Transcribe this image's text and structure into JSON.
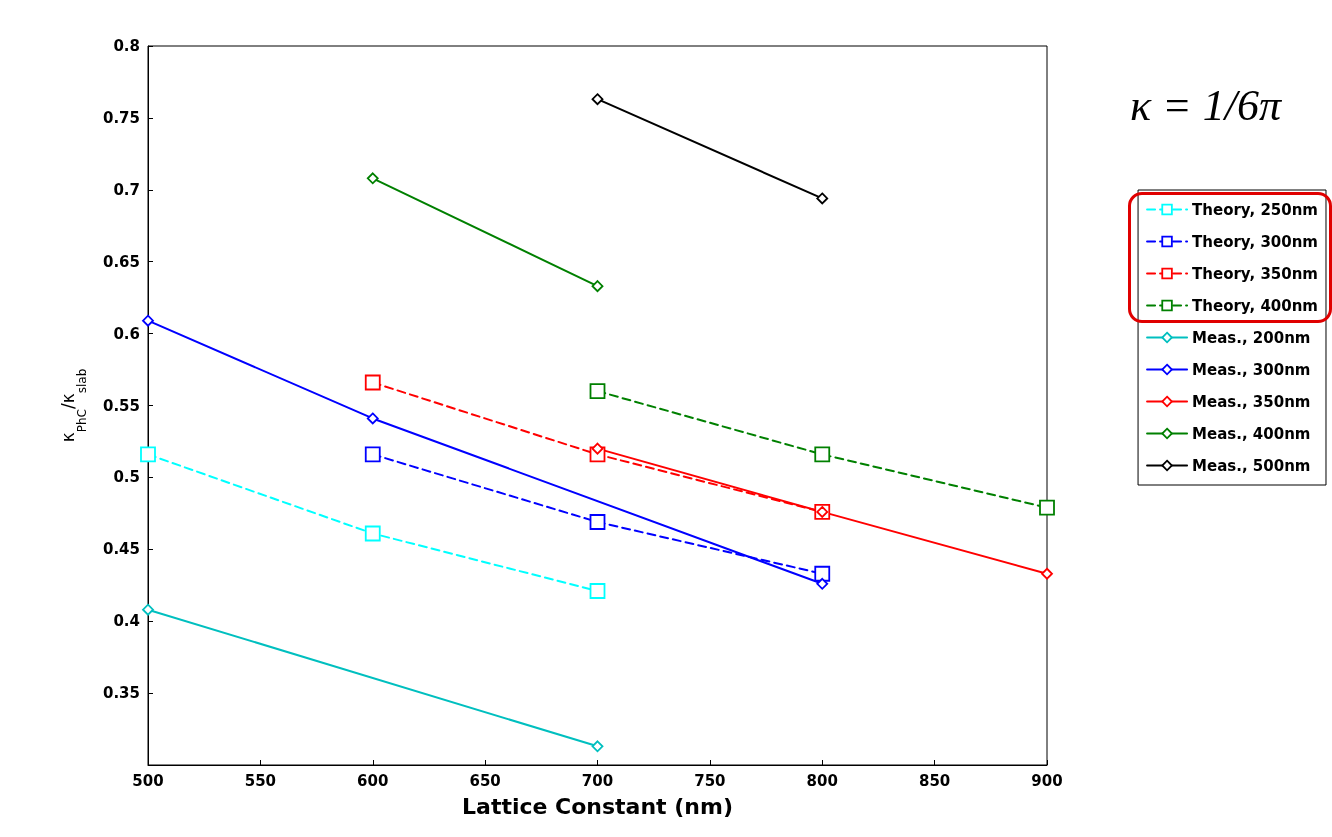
{
  "chart_data": {
    "type": "line",
    "xlabel": "Lattice Constant (nm)",
    "ylabel": "κ$_{PhC}$/κ$_{slab}$",
    "xlim": [
      500,
      900
    ],
    "xticks": [
      500,
      550,
      600,
      650,
      700,
      750,
      800,
      850,
      900
    ],
    "ylim": [
      0.3,
      0.8
    ],
    "yticks": [
      0.35,
      0.4,
      0.45,
      0.5,
      0.55,
      0.6,
      0.65,
      0.7,
      0.75,
      0.8
    ],
    "grid": false,
    "legend": "right",
    "annotations": [
      "κ = 1/6π"
    ],
    "series": [
      {
        "name": "Theory, 250nm",
        "color": "#00ffff",
        "marker": "square",
        "line_style": "dashed",
        "x": [
          500,
          600,
          700
        ],
        "values": [
          0.516,
          0.461,
          0.421
        ]
      },
      {
        "name": "Theory, 300nm",
        "color": "#0000ff",
        "marker": "square",
        "line_style": "dashed",
        "x": [
          600,
          700,
          800
        ],
        "values": [
          0.516,
          0.469,
          0.433
        ]
      },
      {
        "name": "Theory, 350nm",
        "color": "#ff0000",
        "marker": "square",
        "line_style": "dashed",
        "x": [
          600,
          700,
          800
        ],
        "values": [
          0.566,
          0.516,
          0.476
        ]
      },
      {
        "name": "Theory, 400nm",
        "color": "#008000",
        "marker": "square",
        "line_style": "dashed",
        "x": [
          700,
          800,
          900
        ],
        "values": [
          0.56,
          0.516,
          0.479
        ]
      },
      {
        "name": "Meas., 200nm",
        "color": "#00bfbf",
        "marker": "diamond",
        "line_style": "solid",
        "x": [
          500,
          700
        ],
        "values": [
          0.408,
          0.313
        ]
      },
      {
        "name": "Meas., 300nm",
        "color": "#0000ff",
        "marker": "diamond",
        "line_style": "solid",
        "x": [
          500,
          600,
          800
        ],
        "values": [
          0.609,
          0.541,
          0.426
        ]
      },
      {
        "name": "Meas., 350nm",
        "color": "#ff0000",
        "marker": "diamond",
        "line_style": "solid",
        "x": [
          700,
          800,
          900
        ],
        "values": [
          0.52,
          0.476,
          0.433
        ]
      },
      {
        "name": "Meas., 400nm",
        "color": "#008000",
        "marker": "diamond",
        "line_style": "solid",
        "x": [
          600,
          700
        ],
        "values": [
          0.708,
          0.633
        ]
      },
      {
        "name": "Meas., 500nm",
        "color": "#000000",
        "marker": "diamond",
        "line_style": "solid",
        "x": [
          700,
          800
        ],
        "values": [
          0.763,
          0.694
        ]
      }
    ]
  }
}
